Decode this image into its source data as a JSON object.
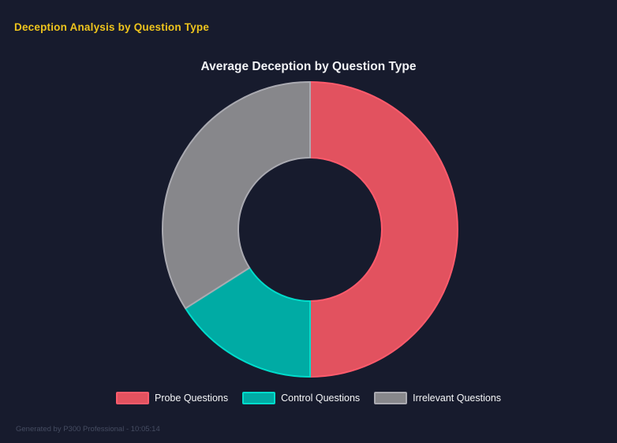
{
  "header": {
    "title": "Deception Analysis by Question Type"
  },
  "chart": {
    "title": "Average Deception by Question Type"
  },
  "chart_data": {
    "type": "pie",
    "style": "donut",
    "title": "Average Deception by Question Type",
    "categories": [
      "Probe Questions",
      "Control Questions",
      "Irrelevant Questions"
    ],
    "values": [
      50,
      16,
      34
    ],
    "unit": "%",
    "colors": [
      "#e2525f",
      "#00aba4",
      "#87878b"
    ],
    "border_colors": [
      "#ff5b6c",
      "#00dccb",
      "#aaaab1"
    ],
    "cutout_ratio": 0.48,
    "rotation_deg": 0,
    "direction": "clockwise",
    "legend_position": "bottom"
  },
  "footer": {
    "text": "Generated by P300 Professional - 10:05:14"
  },
  "theme": {
    "background": "#171b2d",
    "header_title_color": "#eec41d",
    "chart_title_color": "#f2f3f6",
    "legend_text_color": "#f5f6f8",
    "footer_text_color": "#454c61"
  }
}
